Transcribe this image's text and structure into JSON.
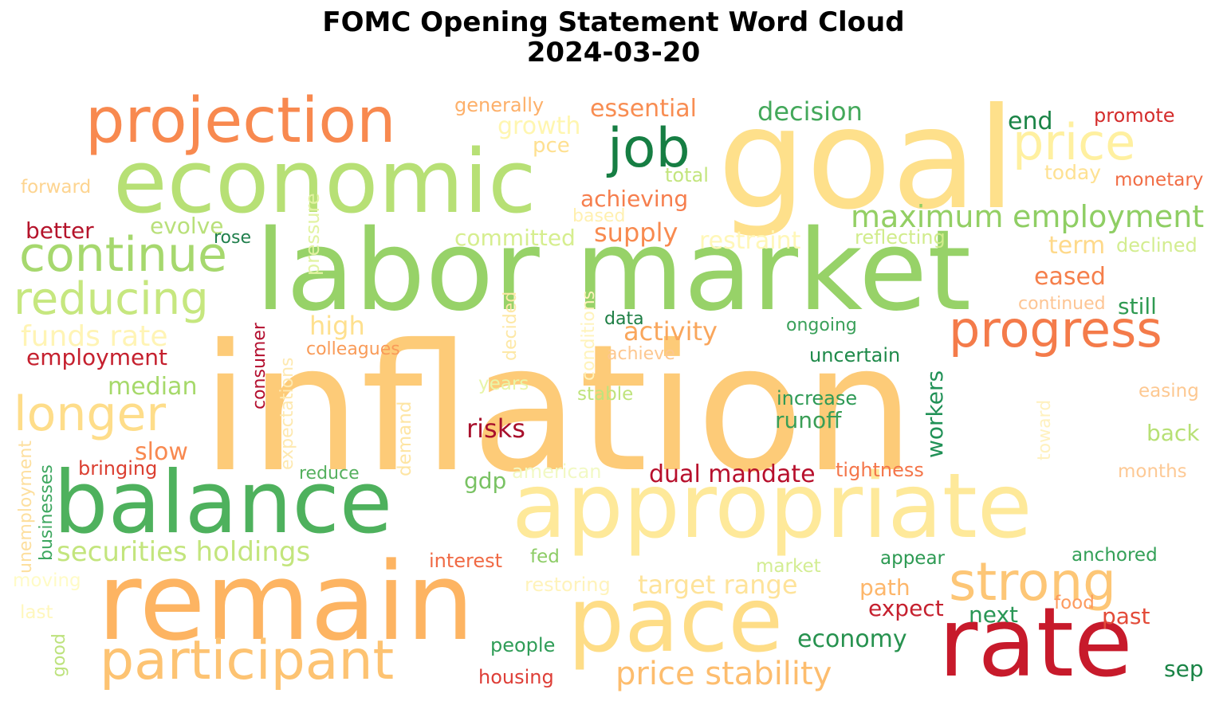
{
  "title": "FOMC Opening Statement Word Cloud",
  "subtitle": "2024-03-20",
  "words": [
    {
      "text": "inflation",
      "color": "#fdcb78"
    },
    {
      "text": "labor market",
      "color": "#97d268"
    },
    {
      "text": "goal",
      "color": "#fee08b"
    },
    {
      "text": "economic",
      "color": "#b7e075"
    },
    {
      "text": "projection",
      "color": "#f8894f"
    },
    {
      "text": "balance",
      "color": "#4eb15d"
    },
    {
      "text": "appropriate",
      "color": "#fee99a"
    },
    {
      "text": "remain",
      "color": "#fdb462"
    },
    {
      "text": "pace",
      "color": "#fedd87"
    },
    {
      "text": "rate",
      "color": "#c71a2b"
    },
    {
      "text": "continue",
      "color": "#a6d86e"
    },
    {
      "text": "reducing",
      "color": "#c6e77f"
    },
    {
      "text": "job",
      "color": "#167e43"
    },
    {
      "text": "price",
      "color": "#fff0a0"
    },
    {
      "text": "progress",
      "color": "#f47b4a"
    },
    {
      "text": "longer",
      "color": "#fedd8a"
    },
    {
      "text": "participant",
      "color": "#fdc372"
    },
    {
      "text": "strong",
      "color": "#fdc676"
    },
    {
      "text": "maximum",
      "color": "#93cf64"
    },
    {
      "text": "employment",
      "color": "#8fce64"
    },
    {
      "text": "decision",
      "color": "#43a85a"
    },
    {
      "text": "essential",
      "color": "#f88d52"
    },
    {
      "text": "end",
      "color": "#1a8446"
    },
    {
      "text": "promote",
      "color": "#d42d2c"
    },
    {
      "text": "today",
      "color": "#fee192"
    },
    {
      "text": "monetary",
      "color": "#f16c44"
    },
    {
      "text": "generally",
      "color": "#fdb06a"
    },
    {
      "text": "growth",
      "color": "#fff6b0"
    },
    {
      "text": "pce",
      "color": "#fee090"
    },
    {
      "text": "total",
      "color": "#c3e57e"
    },
    {
      "text": "forward",
      "color": "#fdd490"
    },
    {
      "text": "achieving",
      "color": "#f67e4d"
    },
    {
      "text": "based",
      "color": "#fff0b0"
    },
    {
      "text": "supply",
      "color": "#f88a4f"
    },
    {
      "text": "restraint",
      "color": "#fff7b8"
    },
    {
      "text": "reflecting",
      "color": "#d1ec8c"
    },
    {
      "text": "term",
      "color": "#fed98a"
    },
    {
      "text": "declined",
      "color": "#d3ed90"
    },
    {
      "text": "eased",
      "color": "#f57f4b"
    },
    {
      "text": "continued",
      "color": "#fdc594"
    },
    {
      "text": "still",
      "color": "#2f9a52"
    },
    {
      "text": "better",
      "color": "#b5142b"
    },
    {
      "text": "evolve",
      "color": "#b9e07a"
    },
    {
      "text": "rose",
      "color": "#207f4c"
    },
    {
      "text": "committed",
      "color": "#d6ee8f"
    },
    {
      "text": "pressure",
      "color": "#e2f3a2"
    },
    {
      "text": "high",
      "color": "#fee08e"
    },
    {
      "text": "activity",
      "color": "#f9a65c"
    },
    {
      "text": "data",
      "color": "#1d7e44"
    },
    {
      "text": "ongoing",
      "color": "#3aa05a"
    },
    {
      "text": "funds rate",
      "color": "#fff4b5"
    },
    {
      "text": "colleagues",
      "color": "#f99b58"
    },
    {
      "text": "achieve",
      "color": "#fdc790"
    },
    {
      "text": "uncertain",
      "color": "#1f8a4a"
    },
    {
      "text": "employment",
      "color": "#c5202e"
    },
    {
      "text": "consumer",
      "color": "#b40f2f"
    },
    {
      "text": "decided",
      "color": "#fde8a6"
    },
    {
      "text": "conditions",
      "color": "#fff3bb"
    },
    {
      "text": "median",
      "color": "#a6d96a"
    },
    {
      "text": "years",
      "color": "#e8f5a8"
    },
    {
      "text": "stable",
      "color": "#bfe37c"
    },
    {
      "text": "increase",
      "color": "#2e9a56"
    },
    {
      "text": "runoff",
      "color": "#3a9e56"
    },
    {
      "text": "workers",
      "color": "#219157"
    },
    {
      "text": "easing",
      "color": "#fdc891"
    },
    {
      "text": "risks",
      "color": "#a8102c"
    },
    {
      "text": "expectations",
      "color": "#fee9b0"
    },
    {
      "text": "demand",
      "color": "#fee5a3"
    },
    {
      "text": "toward",
      "color": "#fff1bf"
    },
    {
      "text": "back",
      "color": "#b7e075"
    },
    {
      "text": "slow",
      "color": "#f88950"
    },
    {
      "text": "bringing",
      "color": "#db3f31"
    },
    {
      "text": "reduce",
      "color": "#55b05e"
    },
    {
      "text": "american",
      "color": "#f2f9c4"
    },
    {
      "text": "dual mandate",
      "color": "#b70f2c"
    },
    {
      "text": "tightness",
      "color": "#f4764a"
    },
    {
      "text": "months",
      "color": "#fdc995"
    },
    {
      "text": "gdp",
      "color": "#79c263"
    },
    {
      "text": "unemployment",
      "color": "#fddf9e"
    },
    {
      "text": "businesses",
      "color": "#3da75f"
    },
    {
      "text": "securities holdings",
      "color": "#c3e57d"
    },
    {
      "text": "interest",
      "color": "#f06a45"
    },
    {
      "text": "fed",
      "color": "#8dcc66"
    },
    {
      "text": "appear",
      "color": "#2d9a53"
    },
    {
      "text": "anchored",
      "color": "#33a057"
    },
    {
      "text": "moving",
      "color": "#fffbc6"
    },
    {
      "text": "market",
      "color": "#d3ed93"
    },
    {
      "text": "restoring",
      "color": "#fff3bb"
    },
    {
      "text": "target range",
      "color": "#fee39a"
    },
    {
      "text": "path",
      "color": "#fdb66a"
    },
    {
      "text": "food",
      "color": "#fd9a5e"
    },
    {
      "text": "last",
      "color": "#fff7bd"
    },
    {
      "text": "expect",
      "color": "#c5202e"
    },
    {
      "text": "next",
      "color": "#2a9756"
    },
    {
      "text": "past",
      "color": "#e34b39"
    },
    {
      "text": "economy",
      "color": "#27924f"
    },
    {
      "text": "good",
      "color": "#bde27d"
    },
    {
      "text": "people",
      "color": "#2f9d57"
    },
    {
      "text": "housing",
      "color": "#de3e37"
    },
    {
      "text": "price stability",
      "color": "#fdbd6e"
    },
    {
      "text": "sep",
      "color": "#1a8446"
    }
  ]
}
